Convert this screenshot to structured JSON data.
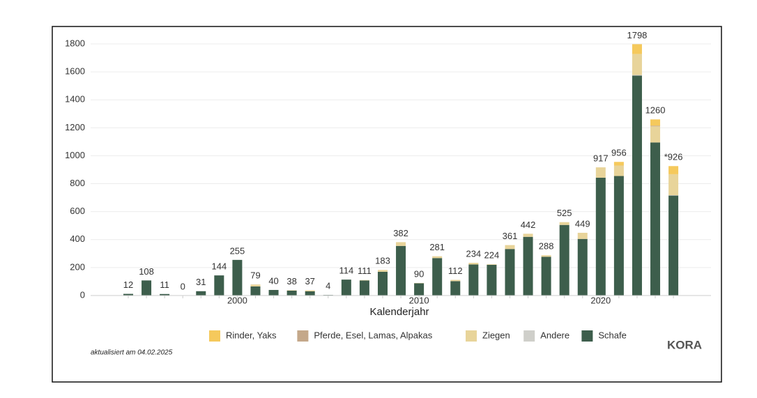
{
  "chart_data": {
    "type": "stacked_bar",
    "x_label": "Kalenderjahr",
    "note": "aktualisiert am 04.02.2025",
    "logo": "KORA",
    "categories": [
      null,
      null,
      null,
      null,
      null,
      null,
      "2000",
      null,
      null,
      null,
      null,
      null,
      null,
      null,
      null,
      null,
      "2010",
      null,
      null,
      null,
      null,
      null,
      null,
      null,
      null,
      null,
      "2020",
      null,
      null,
      null,
      null
    ],
    "series": [
      {
        "name": "Rinder, Yaks",
        "color": "#f5c95c",
        "values": [
          0,
          0,
          0,
          0,
          0,
          0,
          0,
          0,
          0,
          0,
          0,
          0,
          0,
          0,
          0,
          0,
          0,
          0,
          0,
          0,
          0,
          0,
          0,
          0,
          0,
          0,
          0,
          26,
          70,
          45,
          58
        ]
      },
      {
        "name": "Pferde, Esel, Lamas, Alpakas",
        "color": "#c4a88a",
        "values": [
          0,
          0,
          0,
          0,
          0,
          0,
          0,
          0,
          0,
          0,
          0,
          0,
          0,
          0,
          0,
          0,
          0,
          0,
          0,
          0,
          0,
          0,
          0,
          0,
          0,
          0,
          0,
          0,
          0,
          5,
          0
        ]
      },
      {
        "name": "Ziegen",
        "color": "#e8d49a",
        "values": [
          0,
          0,
          0,
          0,
          0,
          0,
          0,
          14,
          0,
          3,
          7,
          0,
          0,
          3,
          13,
          27,
          2,
          13,
          9,
          12,
          4,
          28,
          22,
          11,
          20,
          44,
          74,
          75,
          150,
          115,
          150
        ]
      },
      {
        "name": "Andere",
        "color": "#cfcfca",
        "values": [
          0,
          0,
          0,
          0,
          0,
          0,
          0,
          0,
          0,
          0,
          0,
          0,
          0,
          0,
          0,
          0,
          0,
          0,
          0,
          0,
          0,
          0,
          0,
          0,
          0,
          0,
          0,
          0,
          5,
          0,
          3
        ]
      },
      {
        "name": "Schafe",
        "color": "#3d5e4c",
        "values": [
          12,
          108,
          11,
          0,
          31,
          144,
          255,
          65,
          40,
          35,
          30,
          4,
          114,
          108,
          170,
          355,
          88,
          268,
          103,
          222,
          220,
          333,
          420,
          277,
          505,
          405,
          843,
          855,
          1573,
          1095,
          715
        ]
      }
    ],
    "totals": [
      12,
      108,
      11,
      0,
      31,
      144,
      255,
      79,
      40,
      38,
      37,
      4,
      114,
      111,
      183,
      382,
      90,
      281,
      112,
      234,
      224,
      361,
      442,
      288,
      525,
      449,
      917,
      956,
      1798,
      1260,
      926
    ],
    "value_labels": [
      "12",
      "108",
      "11",
      "0",
      "31",
      "144",
      "255",
      "79",
      "40",
      "38",
      "37",
      "4",
      "114",
      "111",
      "183",
      "382",
      "90",
      "281",
      "112",
      "234",
      "224",
      "361",
      "442",
      "288",
      "525",
      "449",
      "917",
      "956",
      "1798",
      "1260",
      "*926"
    ],
    "ylim": [
      0,
      1800
    ],
    "yticks": [
      0,
      200,
      400,
      600,
      800,
      1000,
      1200,
      1400,
      1600,
      1800
    ],
    "grid": true
  }
}
